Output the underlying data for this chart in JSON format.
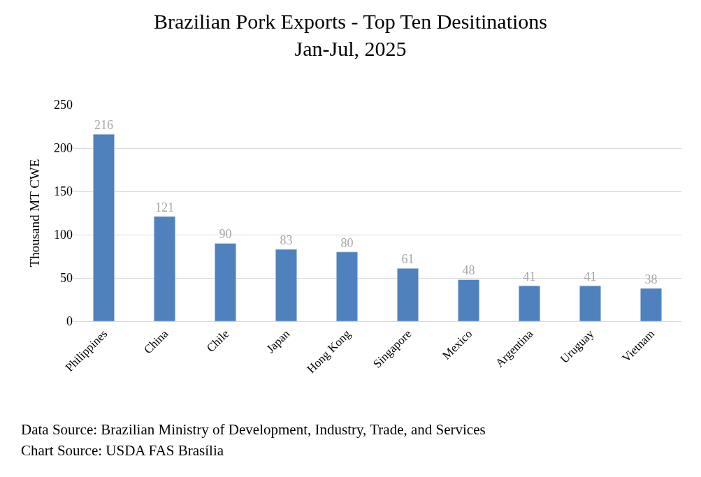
{
  "chart_data": {
    "type": "bar",
    "title": "Brazilian Pork Exports - Top Ten Desitinations\nJan-Jul, 2025",
    "ylabel": "Thousand MT CWE",
    "categories": [
      "Philippines",
      "China",
      "Chile",
      "Japan",
      "Hong Kong",
      "Singapore",
      "Mexico",
      "Argentina",
      "Uruguay",
      "Vietnam"
    ],
    "values": [
      216,
      121,
      90,
      83,
      80,
      61,
      48,
      41,
      41,
      38
    ],
    "color": "#4f81bd",
    "ylim": [
      0,
      250
    ],
    "yticks": [
      0,
      50,
      100,
      150,
      200,
      250
    ],
    "grid": "y",
    "data_labels": true,
    "legend": false,
    "annotations": [
      "Data Source: Brazilian Ministry of Development, Industry, Trade, and Services",
      "Chart Source: USDA FAS Brasília"
    ]
  }
}
